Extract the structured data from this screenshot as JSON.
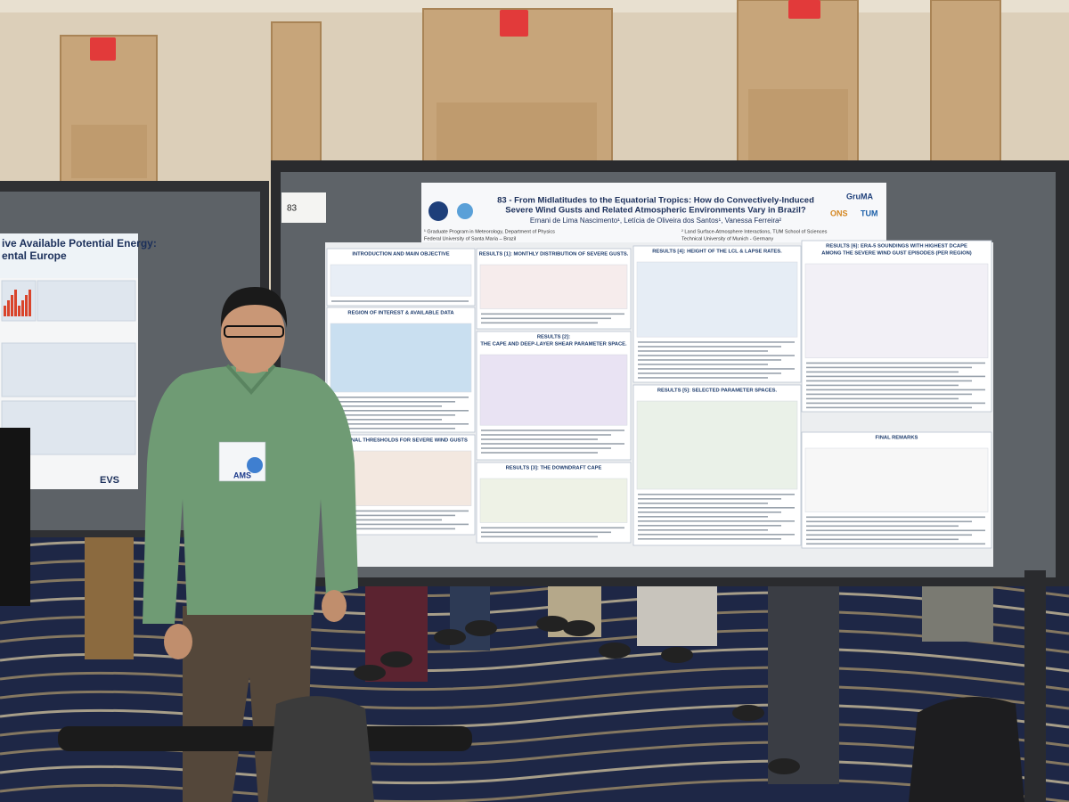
{
  "board_number": "83",
  "badge": "AMS",
  "left_poster": {
    "title_lines": [
      "ive Available Potential Energy:",
      "ental Europe"
    ],
    "logo": "EVS"
  },
  "poster": {
    "title_lines": [
      "83 - From Midlatitudes to the Equatorial Tropics: How do Convectively-Induced",
      "Severe Wind Gusts and Related Atmospheric Environments Vary in Brazil?"
    ],
    "authors": "Ernani de Lima Nascimento¹, Letícia de Oliveira dos Santos¹, Vanessa Ferreira²",
    "affiliations_left": [
      "¹ Graduate Program in Meteorology, Department of Physics",
      "Federal University of Santa Maria – Brazil"
    ],
    "affiliations_right": [
      "² Land Surface-Atmosphere Interactions, TUM School of Sciences",
      "Technical University of Munich - Germany"
    ],
    "logos": [
      "GruMA",
      "ONS",
      "TUM"
    ],
    "sections": [
      {
        "heading": [
          "INTRODUCTION AND MAIN OBJECTIVE"
        ]
      },
      {
        "heading": [
          "REGION OF INTEREST & AVAILABLE DATA"
        ]
      },
      {
        "heading": [
          "REGIONAL THRESHOLDS FOR SEVERE WIND GUSTS"
        ]
      },
      {
        "heading": [
          "RESULTS [1]: MONTHLY DISTRIBUTION OF SEVERE GUSTS."
        ]
      },
      {
        "heading": [
          "RESULTS [2]:",
          "THE CAPE AND DEEP-LAYER SHEAR PARAMETER SPACE."
        ]
      },
      {
        "heading": [
          "RESULTS [3]: THE DOWNDRAFT CAPE"
        ]
      },
      {
        "heading": [
          "RESULTS [4]: HEIGHT OF THE LCL & LAPSE RATES."
        ]
      },
      {
        "heading": [
          "RESULTS [5]: SELECTED PARAMETER SPACES."
        ]
      },
      {
        "heading": [
          "RESULTS [6]: ERA-5 SOUNDINGS WITH HIGHEST DCAPE",
          "AMONG THE SEVERE WIND GUST EPISODES (PER REGION)"
        ]
      },
      {
        "heading": [
          "FINAL REMARKS"
        ]
      }
    ]
  }
}
